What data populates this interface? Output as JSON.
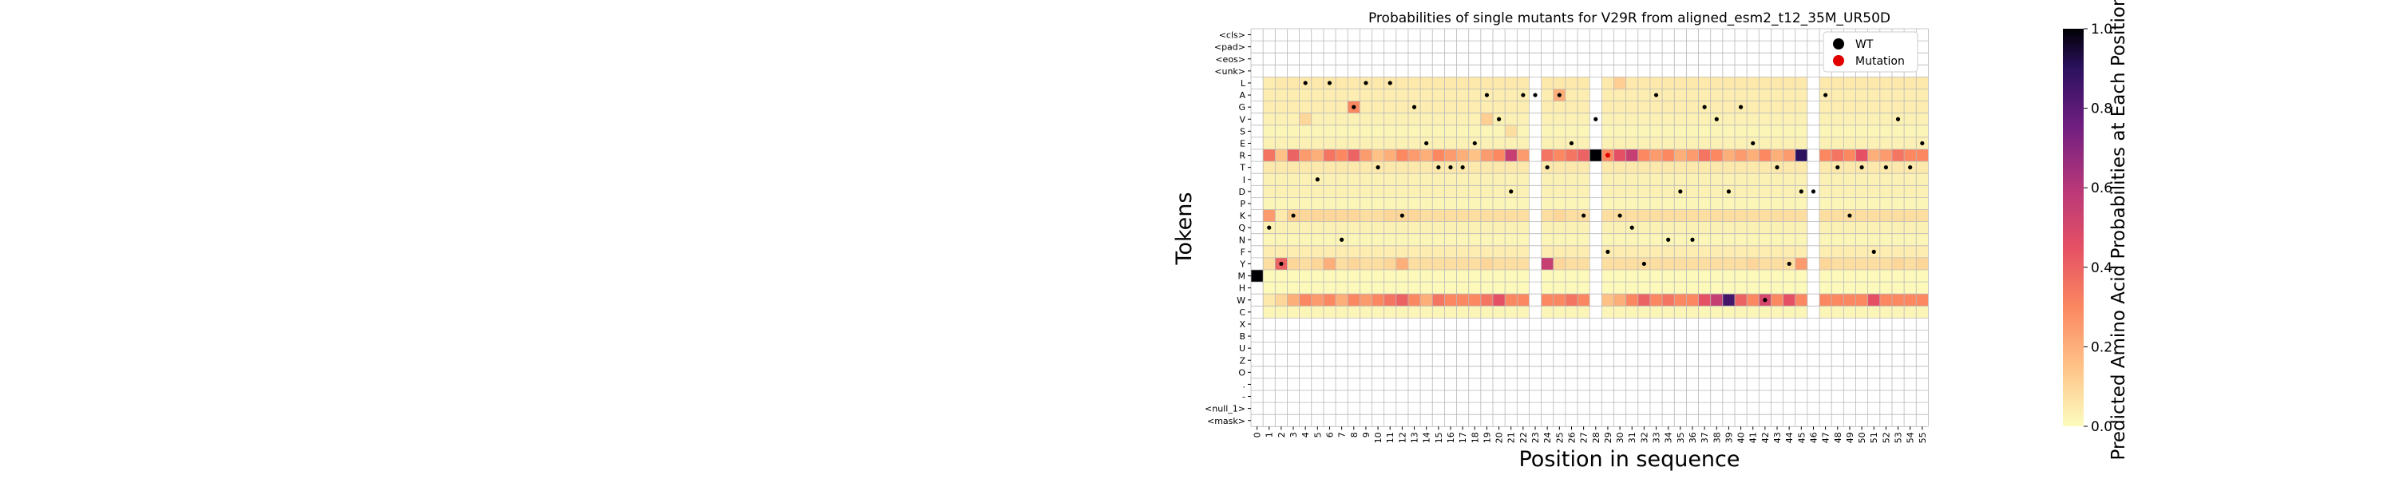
{
  "chart_data": {
    "type": "heatmap",
    "title": "Probabilities of single mutants for V29R from aligned_esm2_t12_35M_UR50D",
    "xlabel": "Position in sequence",
    "ylabel": "Tokens",
    "colorbar_label": "Predicted Amino Acid Probabilities at Each Position",
    "colorbar_range": [
      0.0,
      1.0
    ],
    "colorbar_ticks": [
      "0.0",
      "0.2",
      "0.4",
      "0.6",
      "0.8",
      "1.0"
    ],
    "colormap": "magma_r",
    "grid": true,
    "legend_position": "top-right",
    "legend": [
      {
        "label": "WT",
        "color": "#000000"
      },
      {
        "label": "Mutation",
        "color": "#e00000"
      }
    ],
    "x_labels": [
      "0",
      "1",
      "2",
      "3",
      "4",
      "5",
      "6",
      "7",
      "8",
      "9",
      "10",
      "11",
      "12",
      "13",
      "14",
      "15",
      "16",
      "17",
      "18",
      "19",
      "20",
      "21",
      "22",
      "23",
      "24",
      "25",
      "26",
      "27",
      "28",
      "29",
      "30",
      "31",
      "32",
      "33",
      "34",
      "35",
      "36",
      "37",
      "38",
      "39",
      "40",
      "41",
      "42",
      "43",
      "44",
      "45",
      "46",
      "47",
      "48",
      "49",
      "50",
      "51",
      "52",
      "53",
      "54",
      "55"
    ],
    "tokens": [
      "<cls>",
      "<pad>",
      "<eos>",
      "<unk>",
      "L",
      "A",
      "G",
      "V",
      "S",
      "E",
      "R",
      "T",
      "I",
      "D",
      "P",
      "K",
      "Q",
      "N",
      "F",
      "Y",
      "M",
      "H",
      "W",
      "C",
      "X",
      "B",
      "U",
      "Z",
      "O",
      ".",
      "-",
      "<null_1>",
      "<mask>"
    ],
    "values_note": "probability rows per token (columns = positions 0..55)",
    "matrix": {
      "L": [
        0,
        0.04,
        0.05,
        0.05,
        0.05,
        0.05,
        0.05,
        0.05,
        0.05,
        0.05,
        0.05,
        0.05,
        0.05,
        0.05,
        0.05,
        0.05,
        0.05,
        0.05,
        0.05,
        0.05,
        0.05,
        0.05,
        0.05,
        0,
        0.05,
        0.05,
        0.05,
        0.05,
        0,
        0.05,
        0.12,
        0.05,
        0.05,
        0.05,
        0.05,
        0.05,
        0.05,
        0.05,
        0.05,
        0.05,
        0.05,
        0.05,
        0.05,
        0.05,
        0.05,
        0.05,
        0,
        0.05,
        0.05,
        0.05,
        0.05,
        0.05,
        0.05,
        0.05,
        0.05,
        0.05
      ],
      "A": [
        0,
        0.04,
        0.04,
        0.04,
        0.04,
        0.04,
        0.04,
        0.04,
        0.04,
        0.04,
        0.04,
        0.04,
        0.04,
        0.04,
        0.04,
        0.04,
        0.04,
        0.04,
        0.04,
        0.04,
        0.04,
        0.04,
        0.04,
        0,
        0.04,
        0.2,
        0.04,
        0.04,
        0,
        0.04,
        0.04,
        0.04,
        0.04,
        0.04,
        0.04,
        0.04,
        0.04,
        0.04,
        0.04,
        0.04,
        0.04,
        0.04,
        0.04,
        0.04,
        0.04,
        0.04,
        0,
        0.04,
        0.04,
        0.04,
        0.04,
        0.04,
        0.04,
        0.04,
        0.04,
        0.04
      ],
      "G": [
        0,
        0.04,
        0.04,
        0.04,
        0.04,
        0.04,
        0.04,
        0.04,
        0.3,
        0.04,
        0.04,
        0.04,
        0.04,
        0.04,
        0.04,
        0.04,
        0.04,
        0.04,
        0.04,
        0.04,
        0.04,
        0.04,
        0.04,
        0,
        0.04,
        0.04,
        0.04,
        0.04,
        0,
        0.04,
        0.04,
        0.04,
        0.04,
        0.04,
        0.04,
        0.04,
        0.04,
        0.04,
        0.04,
        0.04,
        0.04,
        0.04,
        0.04,
        0.04,
        0.04,
        0.04,
        0,
        0.04,
        0.04,
        0.04,
        0.04,
        0.04,
        0.04,
        0.04,
        0.04,
        0.04
      ],
      "V": [
        0,
        0.03,
        0.03,
        0.03,
        0.1,
        0.03,
        0.03,
        0.03,
        0.03,
        0.03,
        0.03,
        0.03,
        0.03,
        0.03,
        0.03,
        0.03,
        0.03,
        0.03,
        0.03,
        0.12,
        0.03,
        0.03,
        0.03,
        0,
        0.03,
        0.03,
        0.03,
        0.03,
        0,
        0.03,
        0.03,
        0.03,
        0.03,
        0.03,
        0.03,
        0.03,
        0.03,
        0.03,
        0.03,
        0.03,
        0.03,
        0.03,
        0.03,
        0.03,
        0.03,
        0.03,
        0,
        0.03,
        0.03,
        0.03,
        0.03,
        0.03,
        0.03,
        0.03,
        0.03,
        0.03
      ],
      "S": [
        0,
        0.02,
        0.02,
        0.02,
        0.02,
        0.02,
        0.02,
        0.02,
        0.02,
        0.02,
        0.02,
        0.02,
        0.02,
        0.02,
        0.02,
        0.02,
        0.02,
        0.02,
        0.02,
        0.02,
        0.02,
        0.08,
        0.02,
        0,
        0.02,
        0.02,
        0.02,
        0.02,
        0,
        0.02,
        0.02,
        0.02,
        0.02,
        0.02,
        0.02,
        0.02,
        0.02,
        0.02,
        0.02,
        0.02,
        0.02,
        0.02,
        0.02,
        0.02,
        0.02,
        0.02,
        0,
        0.02,
        0.02,
        0.02,
        0.02,
        0.02,
        0.02,
        0.02,
        0.02,
        0.02
      ],
      "E": [
        0,
        0.03,
        0.03,
        0.03,
        0.03,
        0.03,
        0.03,
        0.03,
        0.03,
        0.03,
        0.03,
        0.03,
        0.03,
        0.03,
        0.03,
        0.03,
        0.03,
        0.03,
        0.03,
        0.03,
        0.03,
        0.03,
        0.03,
        0,
        0.03,
        0.03,
        0.03,
        0.03,
        0,
        0.03,
        0.03,
        0.03,
        0.03,
        0.03,
        0.03,
        0.03,
        0.03,
        0.03,
        0.03,
        0.03,
        0.03,
        0.03,
        0.03,
        0.03,
        0.03,
        0.03,
        0,
        0.03,
        0.03,
        0.03,
        0.03,
        0.03,
        0.03,
        0.03,
        0.03,
        0.03
      ],
      "R": [
        0,
        0.35,
        0.15,
        0.4,
        0.25,
        0.2,
        0.35,
        0.3,
        0.4,
        0.25,
        0.15,
        0.2,
        0.3,
        0.25,
        0.2,
        0.3,
        0.25,
        0.2,
        0.15,
        0.25,
        0.3,
        0.55,
        0.25,
        0,
        0.35,
        0.3,
        0.35,
        0.4,
        1.0,
        0.3,
        0.45,
        0.55,
        0.3,
        0.25,
        0.3,
        0.2,
        0.25,
        0.35,
        0.3,
        0.2,
        0.25,
        0.2,
        0.3,
        0.2,
        0.25,
        0.9,
        0,
        0.3,
        0.35,
        0.3,
        0.45,
        0.2,
        0.25,
        0.35,
        0.3,
        0.3
      ],
      "T": [
        0,
        0.05,
        0.05,
        0.05,
        0.05,
        0.05,
        0.05,
        0.05,
        0.05,
        0.05,
        0.05,
        0.05,
        0.05,
        0.05,
        0.05,
        0.05,
        0.05,
        0.05,
        0.05,
        0.05,
        0.05,
        0.05,
        0.05,
        0,
        0.05,
        0.05,
        0.05,
        0.05,
        0,
        0.05,
        0.05,
        0.05,
        0.05,
        0.05,
        0.05,
        0.05,
        0.05,
        0.05,
        0.05,
        0.05,
        0.05,
        0.05,
        0.05,
        0.05,
        0.05,
        0.05,
        0,
        0.05,
        0.05,
        0.05,
        0.05,
        0.05,
        0.05,
        0.05,
        0.05,
        0.05
      ],
      "I": [
        0,
        0.03,
        0.03,
        0.03,
        0.03,
        0.03,
        0.03,
        0.03,
        0.03,
        0.03,
        0.03,
        0.03,
        0.03,
        0.03,
        0.03,
        0.03,
        0.03,
        0.03,
        0.03,
        0.03,
        0.03,
        0.03,
        0.03,
        0,
        0.03,
        0.03,
        0.03,
        0.03,
        0,
        0.03,
        0.03,
        0.03,
        0.03,
        0.03,
        0.03,
        0.03,
        0.03,
        0.03,
        0.03,
        0.03,
        0.03,
        0.03,
        0.03,
        0.03,
        0.03,
        0.03,
        0,
        0.03,
        0.03,
        0.03,
        0.03,
        0.03,
        0.03,
        0.03,
        0.03,
        0.03
      ],
      "D": [
        0,
        0.03,
        0.03,
        0.03,
        0.03,
        0.03,
        0.03,
        0.03,
        0.03,
        0.03,
        0.03,
        0.03,
        0.03,
        0.03,
        0.03,
        0.03,
        0.03,
        0.03,
        0.03,
        0.03,
        0.03,
        0.03,
        0.03,
        0,
        0.03,
        0.03,
        0.03,
        0.03,
        0,
        0.03,
        0.03,
        0.03,
        0.03,
        0.03,
        0.03,
        0.03,
        0.03,
        0.03,
        0.03,
        0.03,
        0.03,
        0.03,
        0.03,
        0.03,
        0.03,
        0.03,
        0,
        0.03,
        0.03,
        0.03,
        0.03,
        0.03,
        0.03,
        0.03,
        0.03,
        0.03
      ],
      "P": [
        0,
        0.02,
        0.02,
        0.02,
        0.02,
        0.02,
        0.02,
        0.02,
        0.02,
        0.02,
        0.02,
        0.02,
        0.02,
        0.02,
        0.02,
        0.02,
        0.02,
        0.02,
        0.02,
        0.02,
        0.02,
        0.02,
        0.02,
        0,
        0.02,
        0.02,
        0.02,
        0.02,
        0,
        0.02,
        0.02,
        0.02,
        0.02,
        0.02,
        0.02,
        0.02,
        0.02,
        0.02,
        0.02,
        0.02,
        0.02,
        0.02,
        0.02,
        0.02,
        0.02,
        0.02,
        0,
        0.02,
        0.02,
        0.02,
        0.02,
        0.02,
        0.02,
        0.02,
        0.02,
        0.02
      ],
      "K": [
        0,
        0.25,
        0.05,
        0.12,
        0.1,
        0.1,
        0.1,
        0.1,
        0.1,
        0.08,
        0.08,
        0.1,
        0.1,
        0.1,
        0.08,
        0.08,
        0.08,
        0.08,
        0.08,
        0.08,
        0.08,
        0.08,
        0.08,
        0,
        0.08,
        0.1,
        0.08,
        0.08,
        0,
        0.08,
        0.08,
        0.08,
        0.08,
        0.08,
        0.08,
        0.08,
        0.08,
        0.08,
        0.08,
        0.08,
        0.08,
        0.08,
        0.08,
        0.08,
        0.08,
        0.08,
        0,
        0.08,
        0.08,
        0.08,
        0.08,
        0.08,
        0.08,
        0.08,
        0.08,
        0.08
      ],
      "Q": [
        0,
        0.03,
        0.03,
        0.03,
        0.03,
        0.03,
        0.03,
        0.03,
        0.03,
        0.03,
        0.03,
        0.03,
        0.03,
        0.03,
        0.03,
        0.03,
        0.03,
        0.03,
        0.03,
        0.03,
        0.03,
        0.03,
        0.03,
        0,
        0.03,
        0.03,
        0.03,
        0.03,
        0,
        0.03,
        0.03,
        0.03,
        0.03,
        0.03,
        0.03,
        0.03,
        0.03,
        0.03,
        0.03,
        0.03,
        0.03,
        0.03,
        0.03,
        0.03,
        0.03,
        0.03,
        0,
        0.03,
        0.03,
        0.03,
        0.03,
        0.03,
        0.03,
        0.03,
        0.03,
        0.03
      ],
      "N": [
        0,
        0.02,
        0.02,
        0.02,
        0.02,
        0.02,
        0.02,
        0.02,
        0.02,
        0.02,
        0.02,
        0.02,
        0.02,
        0.02,
        0.02,
        0.02,
        0.02,
        0.02,
        0.02,
        0.02,
        0.02,
        0.02,
        0.02,
        0,
        0.02,
        0.02,
        0.02,
        0.02,
        0,
        0.02,
        0.02,
        0.02,
        0.02,
        0.02,
        0.02,
        0.02,
        0.02,
        0.02,
        0.02,
        0.02,
        0.02,
        0.02,
        0.02,
        0.02,
        0.02,
        0.02,
        0,
        0.02,
        0.02,
        0.02,
        0.02,
        0.02,
        0.02,
        0.02,
        0.02,
        0.02
      ],
      "F": [
        0,
        0.04,
        0.04,
        0.04,
        0.04,
        0.04,
        0.04,
        0.04,
        0.04,
        0.04,
        0.04,
        0.04,
        0.04,
        0.04,
        0.04,
        0.04,
        0.04,
        0.04,
        0.04,
        0.04,
        0.04,
        0.04,
        0.04,
        0,
        0.04,
        0.04,
        0.04,
        0.04,
        0,
        0.04,
        0.04,
        0.04,
        0.04,
        0.04,
        0.04,
        0.04,
        0.04,
        0.04,
        0.04,
        0.04,
        0.04,
        0.04,
        0.04,
        0.04,
        0.04,
        0.04,
        0,
        0.04,
        0.04,
        0.04,
        0.04,
        0.04,
        0.04,
        0.04,
        0.04,
        0.04
      ],
      "Y": [
        0,
        0.08,
        0.4,
        0.1,
        0.08,
        0.1,
        0.2,
        0.08,
        0.1,
        0.08,
        0.08,
        0.1,
        0.2,
        0.08,
        0.08,
        0.08,
        0.08,
        0.08,
        0.08,
        0.1,
        0.08,
        0.08,
        0.08,
        0,
        0.55,
        0.1,
        0.08,
        0.08,
        0,
        0.08,
        0.08,
        0.08,
        0.08,
        0.08,
        0.08,
        0.08,
        0.08,
        0.08,
        0.08,
        0.08,
        0.08,
        0.1,
        0.08,
        0.08,
        0.08,
        0.25,
        0,
        0.1,
        0.08,
        0.08,
        0.08,
        0.08,
        0.08,
        0.1,
        0.08,
        0.1
      ],
      "M": [
        1.0,
        0.01,
        0.01,
        0.01,
        0.01,
        0.01,
        0.01,
        0.01,
        0.01,
        0.01,
        0.01,
        0.01,
        0.01,
        0.01,
        0.01,
        0.01,
        0.01,
        0.01,
        0.01,
        0.01,
        0.01,
        0.01,
        0.01,
        0,
        0.01,
        0.01,
        0.01,
        0.01,
        0,
        0.01,
        0.01,
        0.01,
        0.01,
        0.01,
        0.01,
        0.01,
        0.01,
        0.01,
        0.01,
        0.01,
        0.01,
        0.01,
        0.01,
        0.01,
        0.01,
        0.01,
        0,
        0.01,
        0.01,
        0.01,
        0.01,
        0.01,
        0.01,
        0.01,
        0.01,
        0.01
      ],
      "H": [
        0,
        0.01,
        0.01,
        0.01,
        0.01,
        0.01,
        0.01,
        0.01,
        0.01,
        0.01,
        0.01,
        0.01,
        0.01,
        0.01,
        0.01,
        0.01,
        0.01,
        0.01,
        0.01,
        0.01,
        0.01,
        0.01,
        0.01,
        0,
        0.01,
        0.01,
        0.01,
        0.01,
        0,
        0.01,
        0.01,
        0.01,
        0.01,
        0.01,
        0.01,
        0.01,
        0.01,
        0.01,
        0.01,
        0.01,
        0.01,
        0.01,
        0.01,
        0.01,
        0.01,
        0.01,
        0,
        0.01,
        0.01,
        0.01,
        0.01,
        0.01,
        0.01,
        0.01,
        0.01,
        0.01
      ],
      "W": [
        0,
        0.05,
        0.1,
        0.2,
        0.3,
        0.25,
        0.3,
        0.2,
        0.3,
        0.25,
        0.3,
        0.35,
        0.4,
        0.3,
        0.2,
        0.35,
        0.3,
        0.3,
        0.3,
        0.35,
        0.45,
        0.3,
        0.3,
        0,
        0.3,
        0.3,
        0.35,
        0.3,
        0,
        0.15,
        0.2,
        0.3,
        0.4,
        0.3,
        0.35,
        0.3,
        0.3,
        0.45,
        0.55,
        0.85,
        0.4,
        0.3,
        0.5,
        0.3,
        0.45,
        0.3,
        0,
        0.3,
        0.3,
        0.3,
        0.3,
        0.45,
        0.3,
        0.3,
        0.3,
        0.3
      ],
      "C": [
        0,
        0.02,
        0.02,
        0.02,
        0.02,
        0.02,
        0.02,
        0.02,
        0.02,
        0.02,
        0.02,
        0.02,
        0.02,
        0.02,
        0.02,
        0.02,
        0.02,
        0.02,
        0.02,
        0.02,
        0.02,
        0.02,
        0.02,
        0,
        0.02,
        0.02,
        0.02,
        0.02,
        0,
        0.02,
        0.02,
        0.02,
        0.02,
        0.02,
        0.02,
        0.02,
        0.02,
        0.02,
        0.02,
        0.02,
        0.02,
        0.02,
        0.02,
        0.02,
        0.02,
        0.02,
        0,
        0.02,
        0.02,
        0.02,
        0.02,
        0.02,
        0.02,
        0.02,
        0.02,
        0.02
      ]
    },
    "wt_residues": [
      "M",
      "Q",
      "Y",
      "K",
      "L",
      "I",
      "L",
      "N",
      "G",
      "L",
      "T",
      "L",
      "K",
      "G",
      "E",
      "T",
      "T",
      "T",
      "E",
      "A",
      "V",
      "D",
      "A",
      "A",
      "T",
      "A",
      "E",
      "K",
      "V",
      "F",
      "K",
      "Q",
      "Y",
      "A",
      "N",
      "D",
      "N",
      "G",
      "V",
      "D",
      "G",
      "E",
      "W",
      "T",
      "Y",
      "D",
      "D",
      "A",
      "T",
      "K",
      "T",
      "F",
      "T",
      "V",
      "T",
      "E"
    ],
    "mutation": {
      "position": 29,
      "token": "R"
    }
  }
}
